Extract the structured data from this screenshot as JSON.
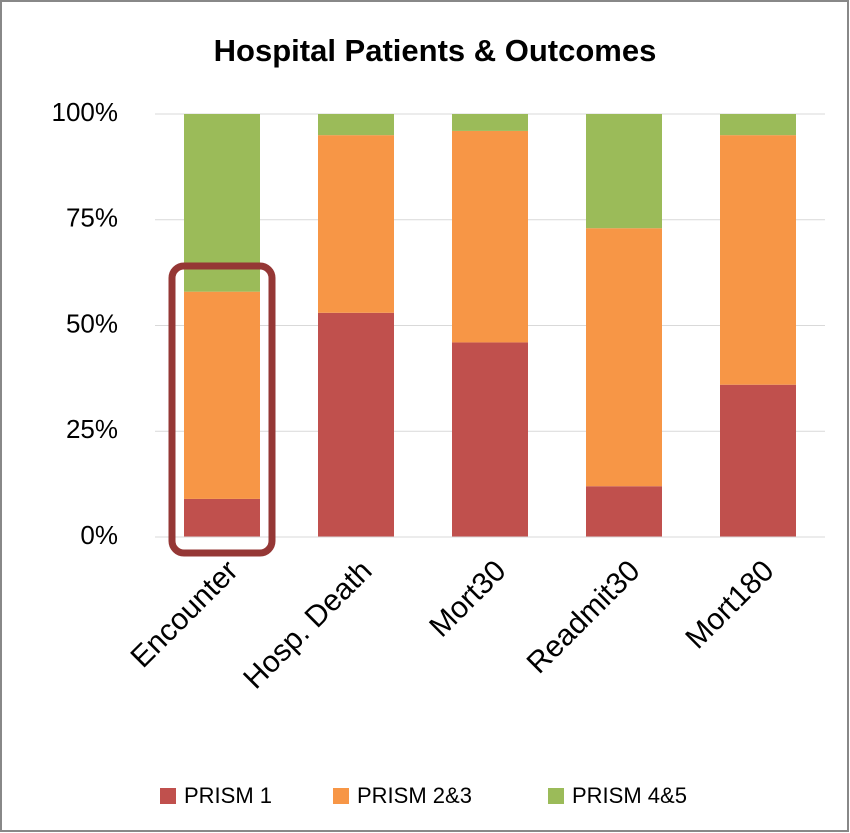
{
  "chart_data": {
    "type": "stacked_bar",
    "title": "Hospital Patients & Outcomes",
    "categories": [
      "Encounter",
      "Hosp. Death",
      "Mort30",
      "Readmit30",
      "Mort180"
    ],
    "series": [
      {
        "name": "PRISM 1",
        "color": "#c0504d",
        "values": [
          9,
          53,
          46,
          12,
          36
        ]
      },
      {
        "name": "PRISM 2&3",
        "color": "#f79646",
        "values": [
          49,
          42,
          50,
          61,
          59
        ]
      },
      {
        "name": "PRISM 4&5",
        "color": "#9bbb59",
        "values": [
          42,
          5,
          4,
          27,
          5
        ]
      }
    ],
    "ylim": [
      0,
      100
    ],
    "yticks": [
      {
        "value": 0,
        "label": "0%"
      },
      {
        "value": 25,
        "label": "25%"
      },
      {
        "value": 50,
        "label": "50%"
      },
      {
        "value": 75,
        "label": "75%"
      },
      {
        "value": 100,
        "label": "100%"
      }
    ],
    "grid": true,
    "legend": "bottom"
  }
}
